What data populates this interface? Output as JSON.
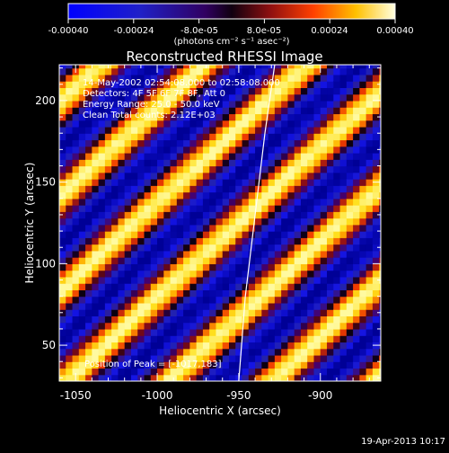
{
  "colorbar": {
    "tick_labels": [
      "-0.00040",
      "-0.00024",
      "-8.0e-05",
      "8.0e-05",
      "0.00024",
      "0.00040"
    ],
    "range": [
      -0.0004,
      0.0004
    ],
    "units_label": "(photons cm⁻² s⁻¹ asec⁻²)"
  },
  "title": "Reconstructed RHESSI Image",
  "info_lines": [
    "14-May-2002 02:54:08.000 to 02:58:08.000",
    "Detectors: 4F 5F 6F 7F 8F, Att 0",
    "Energy Range: 25.0 - 50.0 keV",
    "Clean      Total counts: 2.12E+03"
  ],
  "peak_label": "Position of Peak = [-1017,183]",
  "timestamp": "19-Apr-2013 10:17",
  "chart_data": {
    "type": "heatmap",
    "title": "Reconstructed RHESSI Image",
    "xlabel": "Heliocentric X (arcsec)",
    "ylabel": "Heliocentric Y (arcsec)",
    "xlim": [
      -1060,
      -863
    ],
    "ylim": [
      28,
      222
    ],
    "x_ticks": [
      -1050,
      -1000,
      -950,
      -900
    ],
    "y_ticks": [
      50,
      100,
      150,
      200
    ],
    "x_tick_labels": [
      "-1050",
      "-1000",
      "-950",
      "-900"
    ],
    "y_tick_labels": [
      "50",
      "100",
      "150",
      "200"
    ],
    "pattern": "diagonal stripes",
    "stripe_period_arcsec": 43,
    "pixel_size_arcsec": 4,
    "limb_curve": [
      [
        -950,
        28
      ],
      [
        -946,
        80
      ],
      [
        -940,
        130
      ],
      [
        -934,
        180
      ],
      [
        -928,
        222
      ]
    ],
    "peak_position": [
      -1017,
      183
    ]
  }
}
